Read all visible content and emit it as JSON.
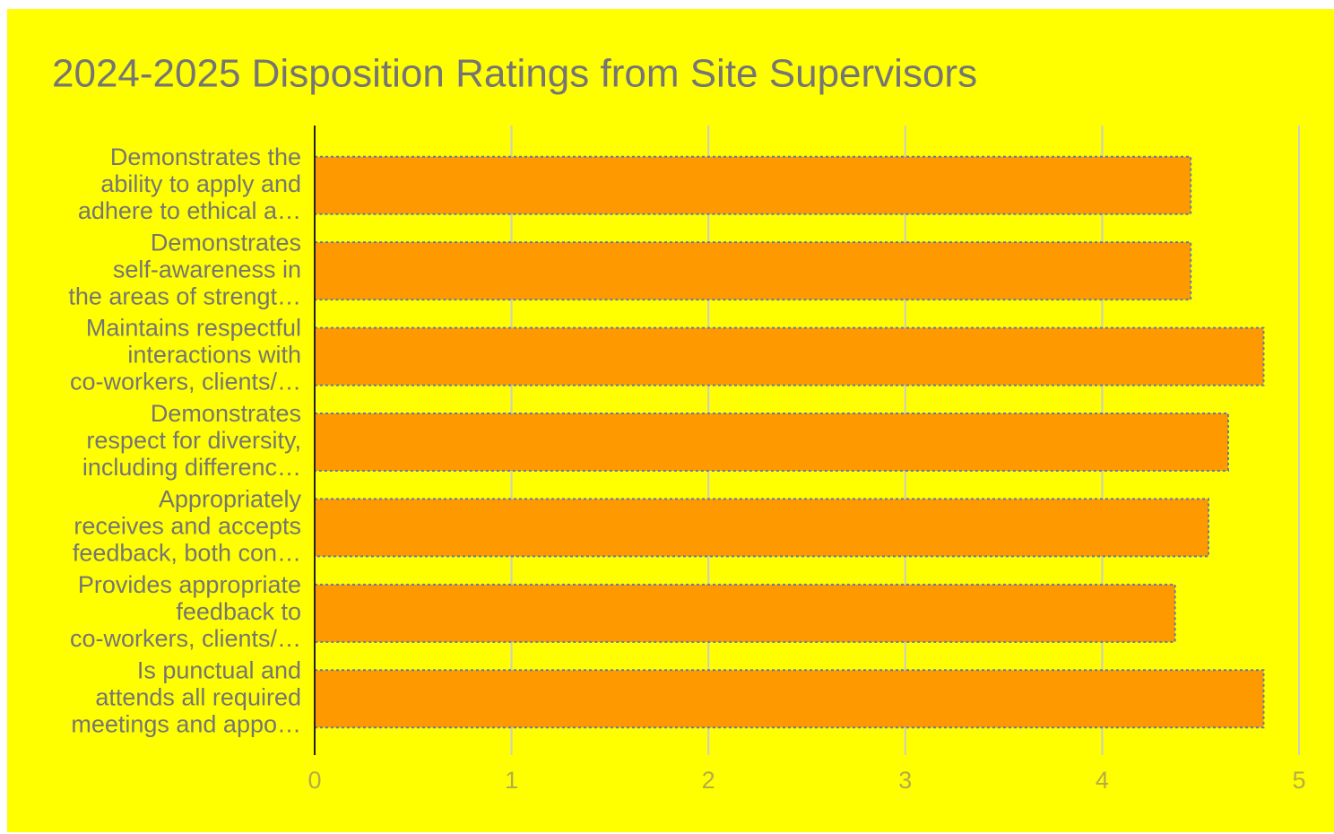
{
  "chart_data": {
    "type": "bar",
    "orientation": "horizontal",
    "title": "2024-2025 Disposition Ratings from Site Supervisors",
    "categories": [
      [
        "Demonstrates the",
        "ability to apply and",
        "adhere to ethical a…"
      ],
      [
        "Demonstrates",
        "self-awareness in",
        "the areas of strengt…"
      ],
      [
        "Maintains respectful",
        "interactions with",
        "co-workers, clients/…"
      ],
      [
        "Demonstrates",
        "respect for diversity,",
        "including differenc…"
      ],
      [
        "Appropriately",
        "receives and accepts",
        "feedback, both con…"
      ],
      [
        "Provides appropriate",
        "feedback to",
        "co-workers, clients/…"
      ],
      [
        "Is punctual and",
        "attends all required",
        "meetings and appo…"
      ]
    ],
    "values": [
      4.45,
      4.45,
      4.82,
      4.64,
      4.54,
      4.37,
      4.82
    ],
    "color": "#ff9900",
    "xlim": [
      0,
      5
    ],
    "xticks": [
      0,
      1,
      2,
      3,
      4,
      5
    ],
    "grid": true
  }
}
